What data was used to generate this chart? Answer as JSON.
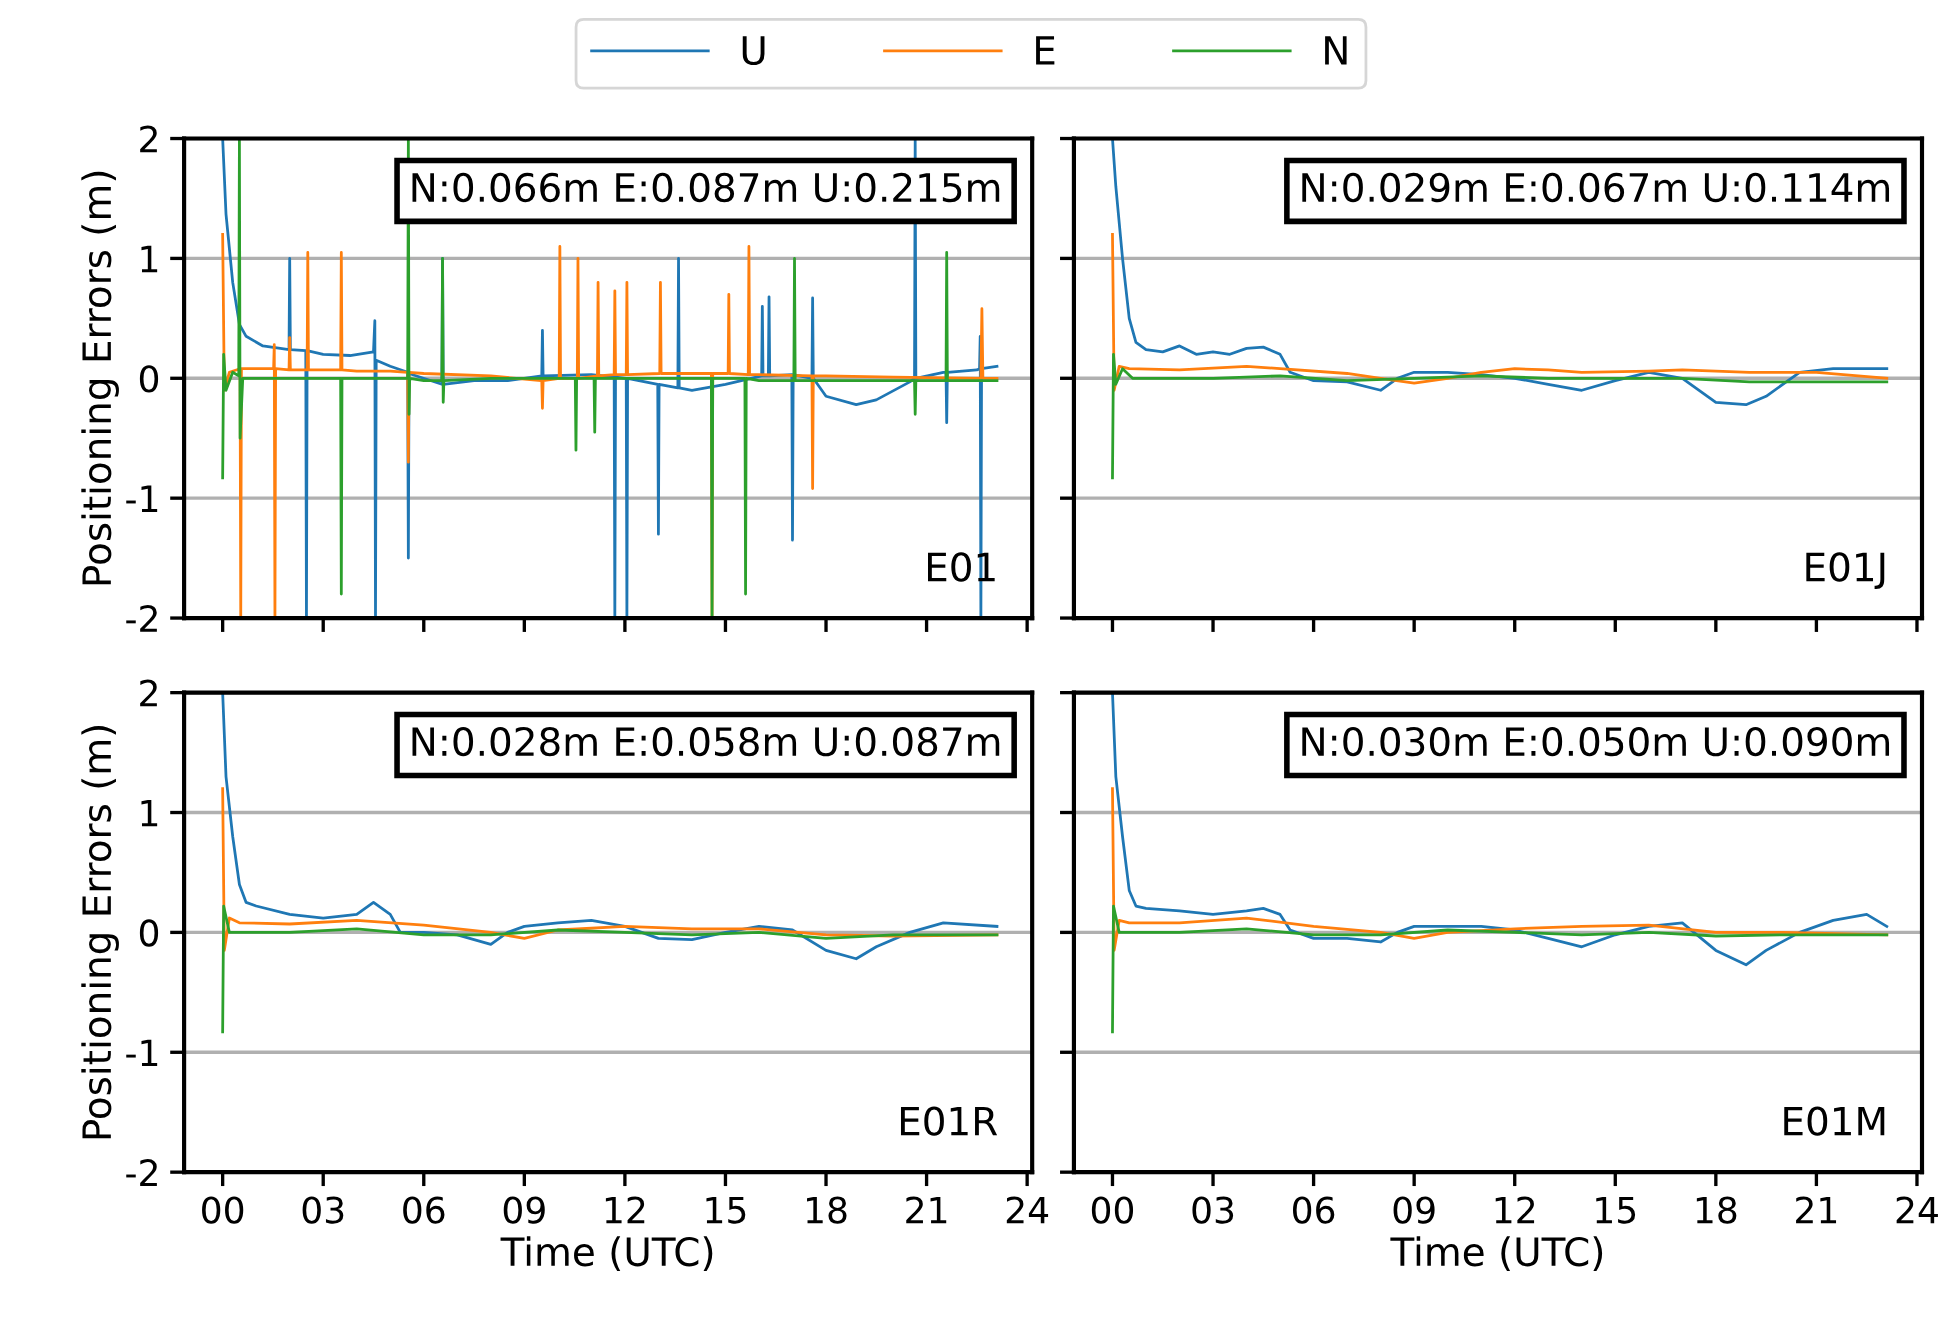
{
  "chart_data": [
    {
      "type": "line",
      "ylabel": "Positioning Errors (m)",
      "legend": "top",
      "grid": "y",
      "tick_labels": "y",
      "xlim": [
        -1.15,
        24.15
      ],
      "ylim": [
        -2,
        2
      ],
      "yticks": [
        {
          "value": -2,
          "label": "-2"
        },
        {
          "value": -1,
          "label": "-1"
        },
        0,
        1,
        2
      ],
      "xticks": [
        {
          "value": 0,
          "label": null
        },
        {
          "value": 3,
          "label": null
        },
        {
          "value": 6,
          "label": null
        },
        {
          "value": 9,
          "label": null
        },
        {
          "value": 12,
          "label": null
        },
        {
          "value": 15,
          "label": null
        },
        {
          "value": 18,
          "label": null
        },
        {
          "value": 21,
          "label": null
        },
        {
          "value": 24,
          "label": null
        }
      ],
      "annotations": [
        "N:0.066m E:0.087m U:0.215m",
        "E01"
      ],
      "series": [
        {
          "name": "U",
          "color": "#1f77b4",
          "x": [
            0,
            0.1,
            0.3,
            0.5,
            0.7,
            1.2,
            1.98,
            2.0,
            2.02,
            2.48,
            2.5,
            2.52,
            3,
            3.8,
            4.5,
            4.54,
            4.56,
            4.58,
            5,
            5.52,
            5.54,
            5.56,
            6.54,
            6.56,
            6.58,
            7.5,
            8.5,
            9.52,
            9.54,
            9.56,
            11,
            11.68,
            11.7,
            11.72,
            12.04,
            12.06,
            12.08,
            12.98,
            13.0,
            13.02,
            13.58,
            13.6,
            13.62,
            14,
            15,
            16.08,
            16.1,
            16.12,
            16.28,
            16.3,
            16.32,
            16.98,
            17.0,
            17.02,
            17.58,
            17.6,
            17.62,
            18,
            18.9,
            19.5,
            20.5,
            20.64,
            20.66,
            20.68,
            21.5,
            21.58,
            21.6,
            21.62,
            22.5,
            22.58,
            22.6,
            22.62,
            22.64,
            23.1
          ],
          "values": [
            2.0,
            1.37,
            0.8,
            0.45,
            0.35,
            0.27,
            0.24,
            1.0,
            0.24,
            0.23,
            -2,
            0.23,
            0.2,
            0.19,
            0.22,
            0.48,
            -2,
            0.15,
            0.1,
            0.05,
            -1.5,
            0.04,
            -0.05,
            1.0,
            -0.05,
            -0.02,
            -0.02,
            0.02,
            0.4,
            0.02,
            0.03,
            0.01,
            -2,
            0.01,
            0,
            -2,
            0,
            -0.05,
            -1.3,
            -0.05,
            -0.08,
            1.0,
            -0.08,
            -0.1,
            -0.05,
            0.02,
            0.6,
            0.02,
            0.02,
            0.68,
            0.02,
            0.03,
            -1.35,
            0.03,
            0,
            0.67,
            0,
            -0.15,
            -0.22,
            -0.18,
            -0.03,
            0,
            2.0,
            0,
            0.05,
            0.05,
            -0.37,
            0.05,
            0.07,
            0.08,
            0.35,
            -2,
            0.08,
            0.1
          ]
        },
        {
          "name": "E",
          "color": "#ff7f0e",
          "x": [
            0,
            0.05,
            0.2,
            0.52,
            0.54,
            0.56,
            1,
            1.52,
            1.54,
            1.56,
            1.58,
            1.98,
            2.0,
            2.02,
            2.52,
            2.54,
            2.56,
            3,
            3.52,
            3.54,
            3.56,
            4,
            5,
            5.52,
            5.54,
            5.56,
            6,
            8,
            9.5,
            9.52,
            9.54,
            9.56,
            10.04,
            10.06,
            10.08,
            10.58,
            10.6,
            10.62,
            11.18,
            11.2,
            11.22,
            11.68,
            11.7,
            11.72,
            12.04,
            12.06,
            12.08,
            13.04,
            13.06,
            13.08,
            14,
            14.58,
            14.6,
            14.62,
            15.08,
            15.1,
            15.12,
            15.68,
            15.7,
            15.72,
            16,
            17.58,
            17.6,
            17.62,
            18,
            20,
            22.62,
            22.65,
            22.68,
            23.1
          ],
          "values": [
            1.2,
            -0.1,
            0.05,
            0.08,
            -2,
            0.08,
            0.08,
            0.08,
            0.28,
            -2,
            0.08,
            0.07,
            0.34,
            0.07,
            0.07,
            1.05,
            0.07,
            0.07,
            0.07,
            1.05,
            0.07,
            0.06,
            0.06,
            0.05,
            -0.7,
            0.05,
            0.04,
            0.02,
            -0.02,
            -0.02,
            -0.25,
            -0.02,
            0,
            1.1,
            0,
            0,
            1.0,
            0,
            0.02,
            0.8,
            0.02,
            0.03,
            0.73,
            0.03,
            0.03,
            0.8,
            0.03,
            0.04,
            0.8,
            0.04,
            0.04,
            0.04,
            -2,
            0.04,
            0.04,
            0.7,
            0.04,
            0.03,
            1.1,
            0.03,
            0.03,
            0.02,
            -0.92,
            0.02,
            0.02,
            0.01,
            0.0,
            0.58,
            0.0,
            0.0
          ]
        },
        {
          "name": "N",
          "color": "#2ca02c",
          "x": [
            0,
            0.03,
            0.1,
            0.3,
            0.48,
            0.5,
            0.52,
            0.6,
            2,
            3.52,
            3.54,
            3.56,
            4,
            5.52,
            5.54,
            5.56,
            5.58,
            6,
            6.54,
            6.56,
            6.58,
            6.6,
            8,
            10,
            10.52,
            10.54,
            10.56,
            11.08,
            11.1,
            11.12,
            12,
            14,
            14.58,
            14.6,
            14.62,
            15.58,
            15.6,
            15.62,
            16,
            17.04,
            17.06,
            17.08,
            18,
            20,
            20.64,
            20.66,
            20.68,
            21.58,
            21.6,
            21.62,
            23.1
          ],
          "values": [
            -0.83,
            0.2,
            -0.1,
            0.05,
            0.02,
            2.0,
            -0.5,
            0.0,
            0.0,
            0.0,
            -1.8,
            0.0,
            0.0,
            0.0,
            2.0,
            -0.3,
            0.0,
            -0.02,
            -0.02,
            1.0,
            -0.2,
            -0.02,
            0,
            0,
            0,
            -0.6,
            0,
            0,
            -0.45,
            0,
            0,
            0,
            0,
            -2,
            0,
            0,
            -1.8,
            0,
            -0.02,
            -0.02,
            1.0,
            -0.02,
            -0.02,
            -0.02,
            -0.02,
            -0.3,
            -0.02,
            -0.02,
            1.05,
            -0.02,
            -0.02
          ]
        }
      ]
    },
    {
      "type": "line",
      "grid": "y",
      "tick_labels": false,
      "xlim": [
        -1.15,
        24.15
      ],
      "ylim": [
        -2,
        2
      ],
      "yticks": [
        {
          "value": -2,
          "label": null
        },
        {
          "value": -1,
          "label": null
        },
        {
          "value": 0,
          "label": null
        },
        {
          "value": 1,
          "label": null
        },
        {
          "value": 2,
          "label": null
        }
      ],
      "xticks": [
        {
          "value": 0,
          "label": null
        },
        {
          "value": 3,
          "label": null
        },
        {
          "value": 6,
          "label": null
        },
        {
          "value": 9,
          "label": null
        },
        {
          "value": 12,
          "label": null
        },
        {
          "value": 15,
          "label": null
        },
        {
          "value": 18,
          "label": null
        },
        {
          "value": 21,
          "label": null
        },
        {
          "value": 24,
          "label": null
        }
      ],
      "annotations": [
        "N:0.029m E:0.067m U:0.114m",
        "E01J"
      ],
      "series": [
        {
          "color": "#1f77b4",
          "x": [
            0,
            0.1,
            0.3,
            0.5,
            0.7,
            1,
            1.5,
            2,
            2.5,
            3,
            3.5,
            4,
            4.5,
            5,
            5.3,
            6,
            7,
            8,
            8.5,
            9,
            10,
            11,
            12,
            13,
            14,
            15,
            16,
            17,
            18,
            18.9,
            19.5,
            20.5,
            21.5,
            23.1
          ],
          "values": [
            2.0,
            1.6,
            1.0,
            0.5,
            0.3,
            0.24,
            0.22,
            0.27,
            0.2,
            0.22,
            0.2,
            0.25,
            0.26,
            0.2,
            0.05,
            -0.02,
            -0.03,
            -0.1,
            0.0,
            0.05,
            0.05,
            0.03,
            0.0,
            -0.05,
            -0.1,
            -0.02,
            0.05,
            0.0,
            -0.2,
            -0.22,
            -0.15,
            0.05,
            0.08,
            0.08
          ]
        },
        {
          "color": "#ff7f0e",
          "x": [
            0,
            0.05,
            0.2,
            0.5,
            2,
            4,
            5,
            7,
            8,
            9,
            10,
            11,
            12,
            13,
            14,
            16,
            17,
            19,
            21,
            23.1
          ],
          "values": [
            1.2,
            -0.1,
            0.1,
            0.08,
            0.07,
            0.1,
            0.08,
            0.04,
            0.0,
            -0.04,
            0.0,
            0.05,
            0.08,
            0.07,
            0.05,
            0.06,
            0.07,
            0.05,
            0.05,
            0.0
          ]
        },
        {
          "color": "#2ca02c",
          "x": [
            0,
            0.03,
            0.1,
            0.3,
            0.6,
            3,
            5,
            7,
            9,
            11,
            13,
            15,
            17,
            19,
            21,
            23.1
          ],
          "values": [
            -0.83,
            0.2,
            -0.05,
            0.08,
            0.0,
            0.0,
            0.02,
            -0.02,
            0.0,
            0.02,
            0.0,
            0.0,
            0.0,
            -0.03,
            -0.03,
            -0.03
          ]
        }
      ]
    },
    {
      "type": "line",
      "ylabel": "Positioning Errors (m)",
      "xlabel": "Time (UTC)",
      "grid": "y",
      "xlim": [
        -1.15,
        24.15
      ],
      "ylim": [
        -2,
        2
      ],
      "yticks": [
        {
          "value": -2,
          "label": "-2"
        },
        {
          "value": -1,
          "label": "-1"
        },
        0,
        1,
        2
      ],
      "xticks": [
        {
          "value": 0,
          "label": "00"
        },
        {
          "value": 3,
          "label": "03"
        },
        {
          "value": 6,
          "label": "06"
        },
        {
          "value": 9,
          "label": "09"
        },
        {
          "value": 12,
          "label": "12"
        },
        {
          "value": 15,
          "label": "15"
        },
        {
          "value": 18,
          "label": "18"
        },
        {
          "value": 21,
          "label": "21"
        },
        {
          "value": 24,
          "label": "24"
        }
      ],
      "annotations": [
        "N:0.028m E:0.058m U:0.087m",
        "E01R"
      ],
      "series": [
        {
          "color": "#1f77b4",
          "x": [
            0,
            0.1,
            0.3,
            0.5,
            0.7,
            1,
            2,
            3,
            4,
            4.5,
            5,
            5.3,
            6,
            7,
            8,
            8.5,
            9,
            10,
            11,
            12,
            13,
            14,
            15,
            16,
            17,
            18,
            18.9,
            19.5,
            20.5,
            21.5,
            23.1
          ],
          "values": [
            2.0,
            1.3,
            0.8,
            0.4,
            0.25,
            0.22,
            0.15,
            0.12,
            0.15,
            0.25,
            0.15,
            0.0,
            0.0,
            -0.02,
            -0.1,
            0.0,
            0.05,
            0.08,
            0.1,
            0.05,
            -0.05,
            -0.06,
            0.0,
            0.05,
            0.02,
            -0.15,
            -0.22,
            -0.12,
            0.0,
            0.08,
            0.05
          ]
        },
        {
          "color": "#ff7f0e",
          "x": [
            0,
            0.05,
            0.2,
            0.5,
            2,
            4,
            6,
            8,
            9,
            10,
            12,
            14,
            16,
            18,
            20,
            23.1
          ],
          "values": [
            1.2,
            -0.15,
            0.12,
            0.08,
            0.07,
            0.1,
            0.06,
            0.0,
            -0.05,
            0.02,
            0.05,
            0.03,
            0.03,
            -0.02,
            -0.03,
            -0.02
          ]
        },
        {
          "color": "#2ca02c",
          "x": [
            0,
            0.03,
            0.2,
            2,
            4,
            6,
            8,
            10,
            12,
            14,
            16,
            18,
            20,
            23.1
          ],
          "values": [
            -0.83,
            0.22,
            0.0,
            0.0,
            0.03,
            -0.02,
            -0.02,
            0.02,
            0.0,
            -0.02,
            0.0,
            -0.05,
            -0.02,
            -0.02
          ]
        }
      ]
    },
    {
      "type": "line",
      "xlabel": "Time (UTC)",
      "grid": "y",
      "tick_labels": "x",
      "xlim": [
        -1.15,
        24.15
      ],
      "ylim": [
        -2,
        2
      ],
      "yticks": [
        {
          "value": -2,
          "label": null
        },
        {
          "value": -1,
          "label": null
        },
        {
          "value": 0,
          "label": null
        },
        {
          "value": 1,
          "label": null
        },
        {
          "value": 2,
          "label": null
        }
      ],
      "xticks": [
        {
          "value": 0,
          "label": "00"
        },
        {
          "value": 3,
          "label": "03"
        },
        {
          "value": 6,
          "label": "06"
        },
        {
          "value": 9,
          "label": "09"
        },
        {
          "value": 12,
          "label": "12"
        },
        {
          "value": 15,
          "label": "15"
        },
        {
          "value": 18,
          "label": "18"
        },
        {
          "value": 21,
          "label": "21"
        },
        {
          "value": 24,
          "label": "24"
        }
      ],
      "annotations": [
        "N:0.030m E:0.050m U:0.090m",
        "E01M"
      ],
      "series": [
        {
          "color": "#1f77b4",
          "x": [
            0,
            0.1,
            0.3,
            0.5,
            0.7,
            1,
            2,
            3,
            4,
            4.5,
            5,
            5.3,
            6,
            7,
            8,
            8.5,
            9,
            10,
            11,
            12,
            13,
            14,
            15,
            16,
            17,
            18,
            18.9,
            19.5,
            20.5,
            21.5,
            22.5,
            23.1
          ],
          "values": [
            2.0,
            1.3,
            0.8,
            0.35,
            0.22,
            0.2,
            0.18,
            0.15,
            0.18,
            0.2,
            0.15,
            0.02,
            -0.05,
            -0.05,
            -0.08,
            0.0,
            0.05,
            0.05,
            0.05,
            0.02,
            -0.05,
            -0.12,
            -0.02,
            0.05,
            0.08,
            -0.15,
            -0.27,
            -0.15,
            0.0,
            0.1,
            0.15,
            0.05
          ]
        },
        {
          "color": "#ff7f0e",
          "x": [
            0,
            0.05,
            0.2,
            0.5,
            2,
            4,
            6,
            8,
            9,
            10,
            12,
            14,
            16,
            18,
            20,
            23.1
          ],
          "values": [
            1.2,
            -0.15,
            0.1,
            0.08,
            0.08,
            0.12,
            0.05,
            0.0,
            -0.05,
            0.0,
            0.03,
            0.05,
            0.06,
            0.0,
            0.0,
            -0.02
          ]
        },
        {
          "color": "#2ca02c",
          "x": [
            0,
            0.03,
            0.2,
            2,
            4,
            6,
            8,
            10,
            12,
            14,
            16,
            18,
            20,
            23.1
          ],
          "values": [
            -0.83,
            0.22,
            0.0,
            0.0,
            0.03,
            -0.02,
            -0.02,
            0.02,
            0.0,
            -0.02,
            0.0,
            -0.03,
            -0.02,
            -0.02
          ]
        }
      ]
    }
  ]
}
